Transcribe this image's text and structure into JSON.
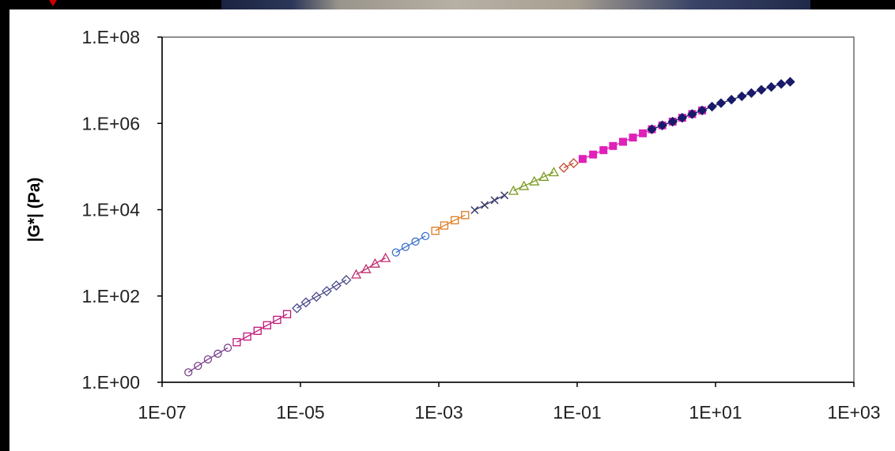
{
  "chart_data": {
    "type": "scatter",
    "title": "",
    "xlabel": "",
    "ylabel": "|G*| (Pa)",
    "x_scale": "log",
    "y_scale": "log",
    "xlim": [
      1e-07,
      1000
    ],
    "ylim": [
      1,
      100000000
    ],
    "grid": false,
    "legend": "none",
    "x_ticks": [
      {
        "value": 1e-07,
        "label": "1E-07"
      },
      {
        "value": 1e-05,
        "label": "1E-05"
      },
      {
        "value": 0.001,
        "label": "1E-03"
      },
      {
        "value": 0.1,
        "label": "1E-01"
      },
      {
        "value": 10,
        "label": "1E+01"
      },
      {
        "value": 1000,
        "label": "1E+03"
      }
    ],
    "y_ticks": [
      {
        "value": 1,
        "label": "1.E+00"
      },
      {
        "value": 100,
        "label": "1.E+02"
      },
      {
        "value": 10000,
        "label": "1.E+04"
      },
      {
        "value": 1000000,
        "label": "1.E+06"
      },
      {
        "value": 100000000,
        "label": "1.E+08"
      }
    ],
    "series": [
      {
        "color": "#7b3f8c",
        "marker": "circle-open",
        "x": [
          2.4e-07,
          3.3e-07,
          4.6e-07,
          6.4e-07,
          8.9e-07
        ],
        "y": [
          1.7,
          2.4,
          3.4,
          4.6,
          6.3
        ]
      },
      {
        "color": "#c0187a",
        "marker": "square-open",
        "x": [
          1.2e-06,
          1.7e-06,
          2.4e-06,
          3.3e-06,
          4.6e-06,
          6.4e-06
        ],
        "y": [
          8.5,
          11.5,
          15.6,
          21,
          28,
          38
        ]
      },
      {
        "color": "#4a4a8a",
        "marker": "diamond-open",
        "x": [
          8.9e-06,
          1.2e-05,
          1.7e-05,
          2.4e-05,
          3.3e-05,
          4.6e-05
        ],
        "y": [
          52,
          71,
          96,
          130,
          175,
          235
        ]
      },
      {
        "color": "#c03070",
        "marker": "triangle-open",
        "x": [
          6.4e-05,
          8.9e-05,
          0.00012,
          0.00017
        ],
        "y": [
          315,
          420,
          565,
          760
        ]
      },
      {
        "color": "#3a6fc8",
        "marker": "circle-open",
        "x": [
          0.00024,
          0.00033,
          0.00046,
          0.00064
        ],
        "y": [
          1020,
          1370,
          1830,
          2450
        ]
      },
      {
        "color": "#e07a20",
        "marker": "square-open",
        "x": [
          0.00089,
          0.0012,
          0.0017,
          0.0024
        ],
        "y": [
          3250,
          4300,
          5700,
          7500
        ]
      },
      {
        "color": "#3a3a6a",
        "marker": "cross",
        "x": [
          0.0033,
          0.0046,
          0.0064,
          0.0089
        ],
        "y": [
          9800,
          12800,
          16600,
          21500
        ]
      },
      {
        "color": "#7a9a20",
        "marker": "triangle-open",
        "x": [
          0.012,
          0.017,
          0.024,
          0.033,
          0.046
        ],
        "y": [
          27500,
          35500,
          45500,
          58000,
          74000
        ]
      },
      {
        "color": "#c04a2a",
        "marker": "diamond-open",
        "x": [
          0.064,
          0.089
        ],
        "y": [
          94000,
          120000
        ]
      },
      {
        "color": "#e020b8",
        "marker": "square-filled",
        "x": [
          0.12,
          0.17,
          0.24,
          0.33,
          0.46,
          0.64,
          0.89,
          1.2,
          1.7,
          2.4,
          3.3,
          4.6,
          6.4
        ],
        "y": [
          150000,
          190000,
          240000,
          300000,
          375000,
          470000,
          590000,
          730000,
          900000,
          1100000,
          1350000,
          1650000,
          2000000
        ]
      },
      {
        "color": "#1a1a6a",
        "marker": "diamond-filled",
        "x": [
          1.2,
          1.7,
          2.4,
          3.3,
          4.6,
          6.4,
          8.9,
          12,
          17,
          24,
          33,
          46,
          64,
          89,
          120
        ],
        "y": [
          730000,
          900000,
          1100000,
          1350000,
          1650000,
          2000000,
          2450000,
          2950000,
          3550000,
          4250000,
          5050000,
          6000000,
          7000000,
          8200000,
          9200000
        ]
      }
    ]
  }
}
